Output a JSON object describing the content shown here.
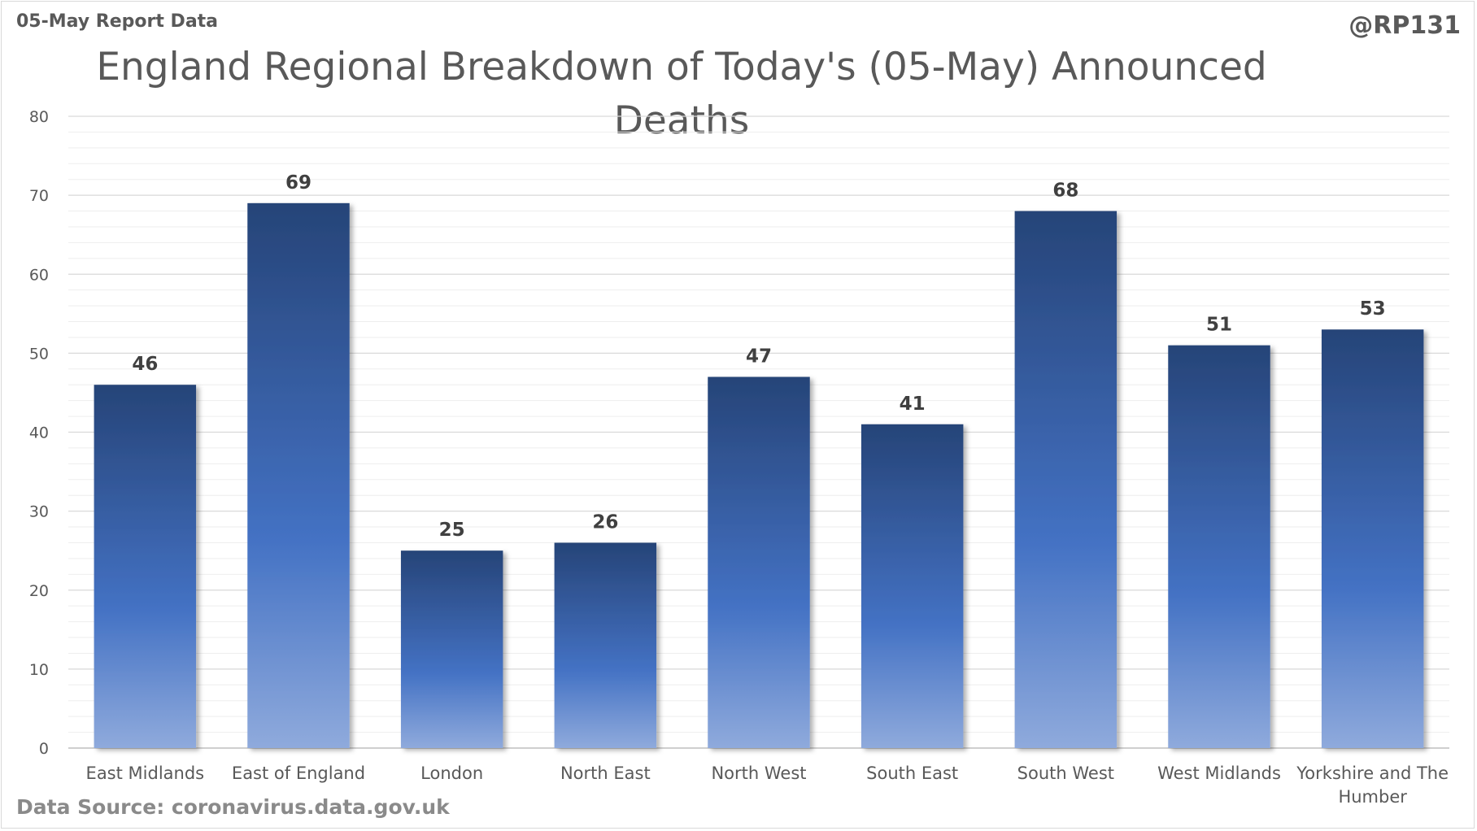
{
  "header": {
    "report_label": "05-May Report Data",
    "handle": "@RP131"
  },
  "footer": {
    "source": "Data Source: coronavirus.data.gov.uk"
  },
  "chart_data": {
    "type": "bar",
    "title_lines": [
      "England Regional Breakdown of Today's (05-May) Announced",
      "Deaths"
    ],
    "categories": [
      [
        "East Midlands"
      ],
      [
        "East of England"
      ],
      [
        "London"
      ],
      [
        "North East"
      ],
      [
        "North West"
      ],
      [
        "South East"
      ],
      [
        "South West"
      ],
      [
        "West Midlands"
      ],
      [
        "Yorkshire and The",
        "Humber"
      ]
    ],
    "values": [
      46,
      69,
      25,
      26,
      47,
      41,
      68,
      51,
      53
    ],
    "ylim": [
      0,
      80
    ],
    "yticks": [
      0,
      10,
      20,
      30,
      40,
      50,
      60,
      70,
      80
    ],
    "minor_grid_step": 2,
    "grid": true,
    "data_labels": true,
    "legend": "none",
    "colors": {
      "bar_top": "#264478",
      "bar_mid": "#4472c4",
      "bar_bottom": "#8faadc",
      "grid_major": "#d9d9d9",
      "grid_minor": "#eeeeee"
    }
  }
}
